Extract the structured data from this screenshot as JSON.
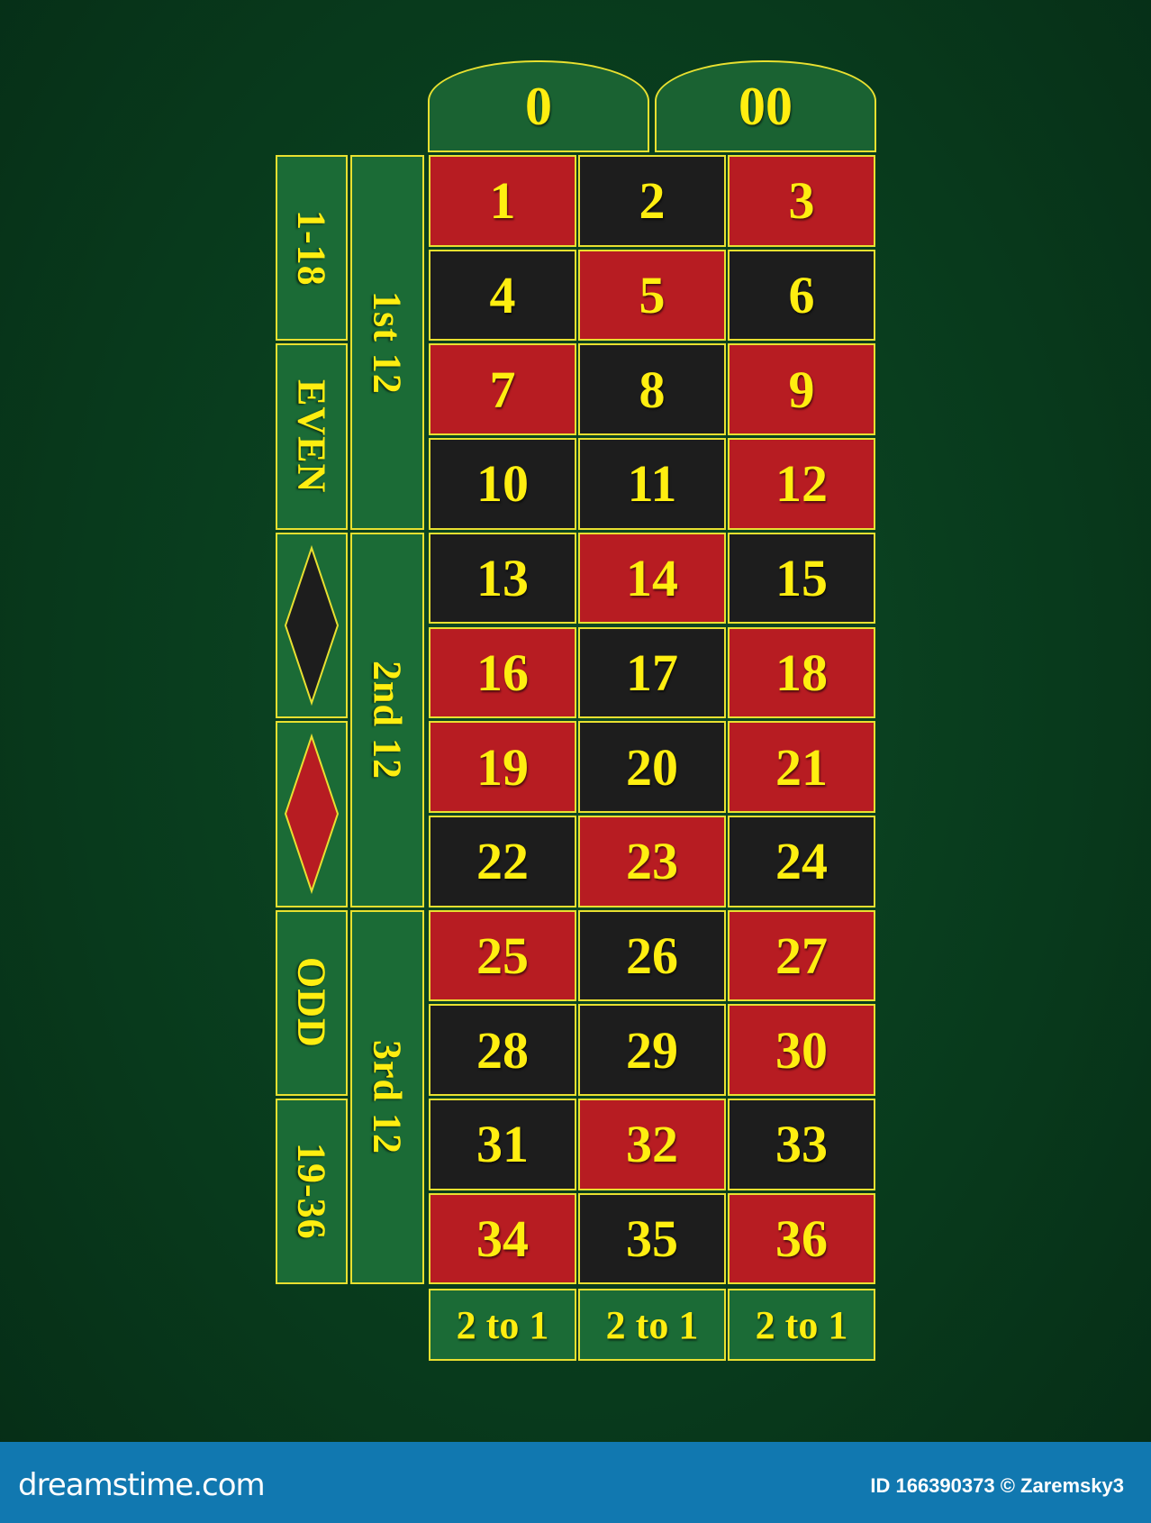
{
  "zeros": [
    {
      "label": "0"
    },
    {
      "label": "00"
    }
  ],
  "numbers": [
    {
      "n": "1",
      "color": "red"
    },
    {
      "n": "2",
      "color": "black"
    },
    {
      "n": "3",
      "color": "red"
    },
    {
      "n": "4",
      "color": "black"
    },
    {
      "n": "5",
      "color": "red"
    },
    {
      "n": "6",
      "color": "black"
    },
    {
      "n": "7",
      "color": "red"
    },
    {
      "n": "8",
      "color": "black"
    },
    {
      "n": "9",
      "color": "red"
    },
    {
      "n": "10",
      "color": "black"
    },
    {
      "n": "11",
      "color": "black"
    },
    {
      "n": "12",
      "color": "red"
    },
    {
      "n": "13",
      "color": "black"
    },
    {
      "n": "14",
      "color": "red"
    },
    {
      "n": "15",
      "color": "black"
    },
    {
      "n": "16",
      "color": "red"
    },
    {
      "n": "17",
      "color": "black"
    },
    {
      "n": "18",
      "color": "red"
    },
    {
      "n": "19",
      "color": "red"
    },
    {
      "n": "20",
      "color": "black"
    },
    {
      "n": "21",
      "color": "red"
    },
    {
      "n": "22",
      "color": "black"
    },
    {
      "n": "23",
      "color": "red"
    },
    {
      "n": "24",
      "color": "black"
    },
    {
      "n": "25",
      "color": "red"
    },
    {
      "n": "26",
      "color": "black"
    },
    {
      "n": "27",
      "color": "red"
    },
    {
      "n": "28",
      "color": "black"
    },
    {
      "n": "29",
      "color": "black"
    },
    {
      "n": "30",
      "color": "red"
    },
    {
      "n": "31",
      "color": "black"
    },
    {
      "n": "32",
      "color": "red"
    },
    {
      "n": "33",
      "color": "black"
    },
    {
      "n": "34",
      "color": "red"
    },
    {
      "n": "35",
      "color": "black"
    },
    {
      "n": "36",
      "color": "red"
    }
  ],
  "outside": [
    {
      "label": "1-18",
      "type": "text"
    },
    {
      "label": "EVEN",
      "type": "text"
    },
    {
      "label": "",
      "type": "diamond",
      "color": "black"
    },
    {
      "label": "",
      "type": "diamond",
      "color": "red"
    },
    {
      "label": "ODD",
      "type": "text"
    },
    {
      "label": "19-36",
      "type": "text"
    }
  ],
  "dozens": [
    {
      "label": "1st 12"
    },
    {
      "label": "2nd 12"
    },
    {
      "label": "3rd 12"
    }
  ],
  "columns": [
    {
      "label": "2 to 1"
    },
    {
      "label": "2 to 1"
    },
    {
      "label": "2 to 1"
    }
  ],
  "colors": {
    "red": "#b71c22",
    "black": "#1d1d1d",
    "felt": "#083a1c",
    "cell_green": "#1b6b36",
    "text": "#ffee10",
    "border": "#e8e030",
    "footer": "#1178b0"
  },
  "footer": {
    "brand": "dreamstime.com",
    "credit": "ID 166390373 © Zaremsky3"
  }
}
